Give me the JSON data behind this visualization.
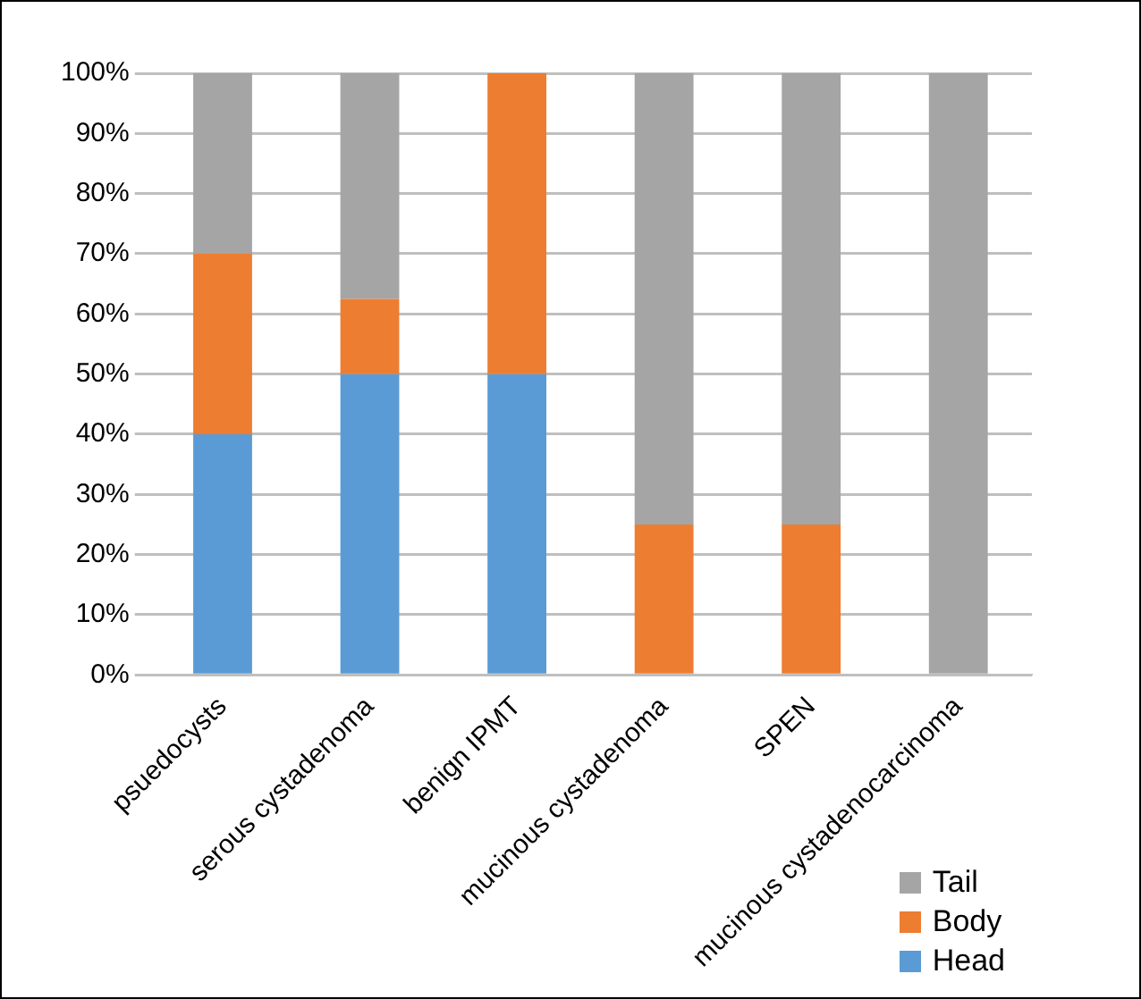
{
  "chart_data": {
    "type": "bar",
    "stacked": true,
    "categories": [
      "psuedocysts",
      "serous cystadenoma",
      "benign IPMT",
      "mucinous cystadenoma",
      "SPEN",
      "mucinous cystadenocarcinoma"
    ],
    "series": [
      {
        "name": "Head",
        "color": "#5b9bd5",
        "values": [
          40,
          50,
          50,
          0,
          0,
          0
        ]
      },
      {
        "name": "Body",
        "color": "#ed7d31",
        "values": [
          30,
          12.5,
          50,
          25,
          25,
          0
        ]
      },
      {
        "name": "Tail",
        "color": "#a5a5a5",
        "values": [
          30,
          37.5,
          0,
          75,
          75,
          100
        ]
      }
    ],
    "ylim": [
      0,
      100
    ],
    "yticks": [
      {
        "value": 0,
        "label": "0%"
      },
      {
        "value": 10,
        "label": "10%"
      },
      {
        "value": 20,
        "label": "20%"
      },
      {
        "value": 30,
        "label": "30%"
      },
      {
        "value": 40,
        "label": "40%"
      },
      {
        "value": 50,
        "label": "50%"
      },
      {
        "value": 60,
        "label": "60%"
      },
      {
        "value": 70,
        "label": "70%"
      },
      {
        "value": 80,
        "label": "80%"
      },
      {
        "value": 90,
        "label": "90%"
      },
      {
        "value": 100,
        "label": "100%"
      }
    ],
    "grid": "y",
    "legend": "bottom right"
  }
}
